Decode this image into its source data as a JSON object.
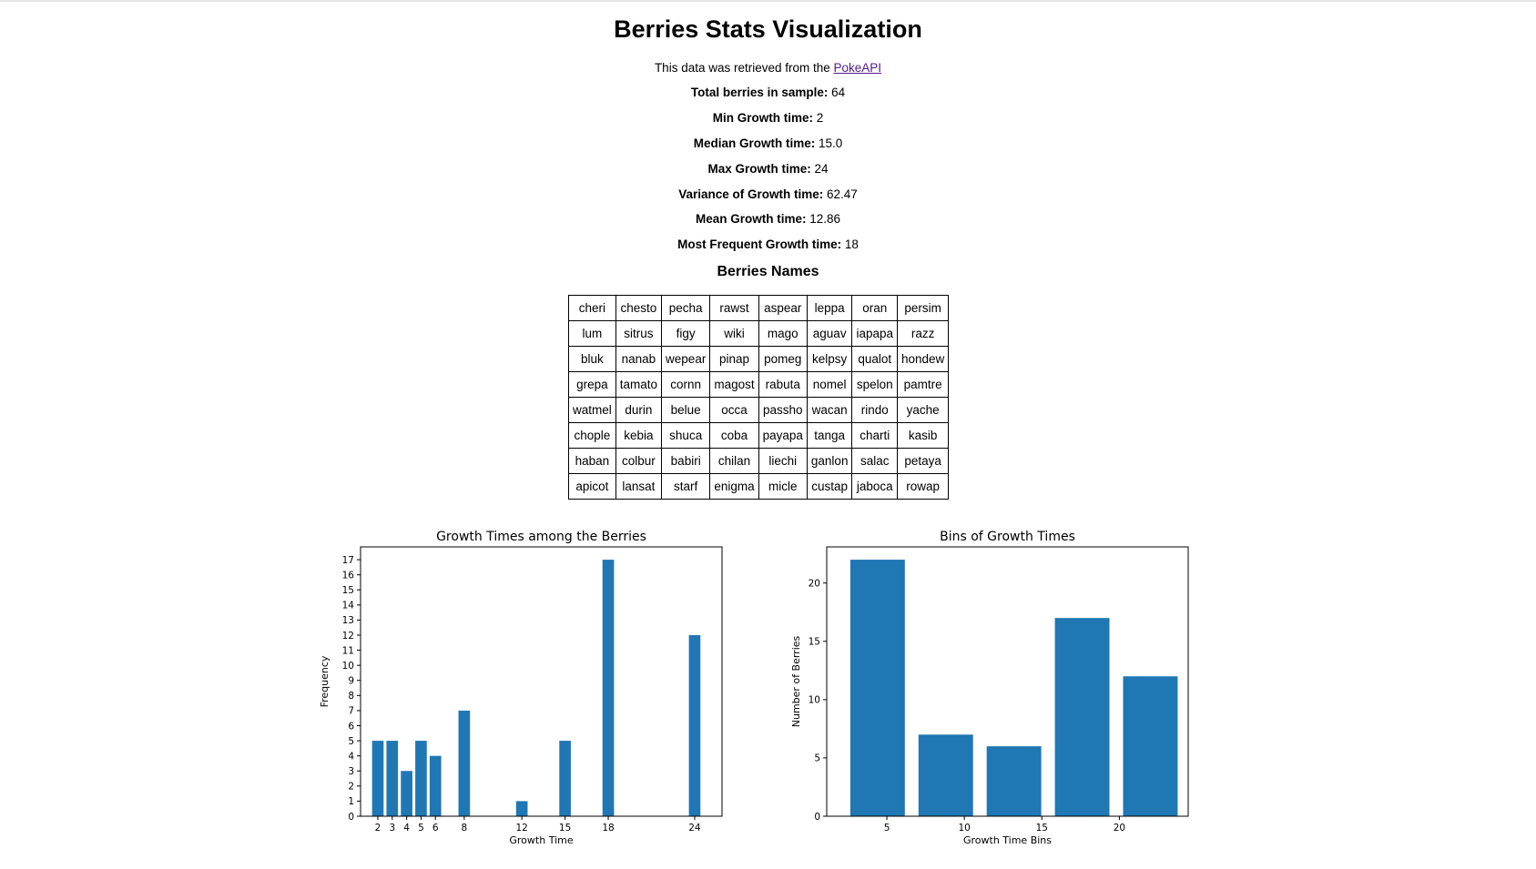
{
  "header": {
    "title": "Berries Stats Visualization",
    "source_prefix": "This data was retrieved from the ",
    "source_link": "PokeAPI"
  },
  "stats": [
    {
      "label": "Total berries in sample:",
      "value": "64"
    },
    {
      "label": "Min Growth time:",
      "value": "2"
    },
    {
      "label": "Median Growth time:",
      "value": "15.0"
    },
    {
      "label": "Max Growth time:",
      "value": "24"
    },
    {
      "label": "Variance of Growth time:",
      "value": "62.47"
    },
    {
      "label": "Mean Growth time:",
      "value": "12.86"
    },
    {
      "label": "Most Frequent Growth time:",
      "value": "18"
    }
  ],
  "names_title": "Berries Names",
  "names": [
    [
      "cheri",
      "chesto",
      "pecha",
      "rawst",
      "aspear",
      "leppa",
      "oran",
      "persim"
    ],
    [
      "lum",
      "sitrus",
      "figy",
      "wiki",
      "mago",
      "aguav",
      "iapapa",
      "razz"
    ],
    [
      "bluk",
      "nanab",
      "wepear",
      "pinap",
      "pomeg",
      "kelpsy",
      "qualot",
      "hondew"
    ],
    [
      "grepa",
      "tamato",
      "cornn",
      "magost",
      "rabuta",
      "nomel",
      "spelon",
      "pamtre"
    ],
    [
      "watmel",
      "durin",
      "belue",
      "occa",
      "passho",
      "wacan",
      "rindo",
      "yache"
    ],
    [
      "chople",
      "kebia",
      "shuca",
      "coba",
      "payapa",
      "tanga",
      "charti",
      "kasib"
    ],
    [
      "haban",
      "colbur",
      "babiri",
      "chilan",
      "liechi",
      "ganlon",
      "salac",
      "petaya"
    ],
    [
      "apicot",
      "lansat",
      "starf",
      "enigma",
      "micle",
      "custap",
      "jaboca",
      "rowap"
    ]
  ],
  "chart_data": [
    {
      "type": "bar",
      "title": "Growth Times among the Berries",
      "xlabel": "Growth Time",
      "ylabel": "Frequency",
      "x": [
        2,
        3,
        4,
        5,
        6,
        8,
        12,
        15,
        18,
        24
      ],
      "values": [
        5,
        5,
        3,
        5,
        4,
        7,
        1,
        5,
        17,
        12
      ],
      "xticks": [
        2,
        3,
        4,
        5,
        6,
        8,
        12,
        15,
        18,
        24
      ],
      "yticks": [
        0,
        1,
        2,
        3,
        4,
        5,
        6,
        7,
        8,
        9,
        10,
        11,
        12,
        13,
        14,
        15,
        16,
        17
      ],
      "xlim": [
        0.8,
        25.9
      ],
      "ylim": [
        0,
        17.85
      ],
      "bar_width": 0.8,
      "color": "#1f77b4",
      "grid": false
    },
    {
      "type": "bar",
      "title": "Bins of Growth Times",
      "xlabel": "Growth Time Bins",
      "ylabel": "Number of Berries",
      "x": [
        4.4,
        8.8,
        13.2,
        17.6,
        22
      ],
      "values": [
        22,
        7,
        6,
        17,
        12
      ],
      "xticks": [
        5,
        10,
        15,
        20
      ],
      "yticks": [
        0,
        5,
        10,
        15,
        20
      ],
      "xlim": [
        1.12,
        24.44
      ],
      "ylim": [
        0,
        23.1
      ],
      "bar_width": 3.52,
      "color": "#1f77b4",
      "grid": false
    }
  ]
}
